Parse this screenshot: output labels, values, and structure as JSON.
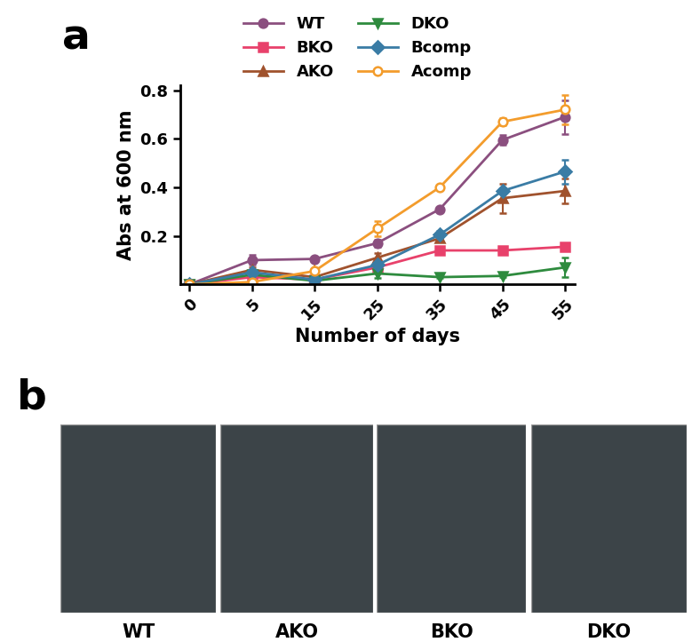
{
  "chart_data": {
    "type": "line",
    "panel_label": "a",
    "x_label": "Number of days",
    "y_label": "Abs at 600 nm",
    "categories": [
      "0",
      "5",
      "15",
      "25",
      "35",
      "45",
      "55"
    ],
    "ylim": [
      0,
      0.82
    ],
    "yticks": [
      0.2,
      0.4,
      0.6,
      0.8
    ],
    "legend": "upper center",
    "series": [
      {
        "name": "WT",
        "color": "#8b4f7f",
        "marker": "circle",
        "values": [
          0,
          0.1,
          0.105,
          0.17,
          0.31,
          0.595,
          0.69
        ],
        "errors": [
          0,
          0.02,
          0.005,
          0.015,
          0.005,
          0.02,
          0.07
        ]
      },
      {
        "name": "BKO",
        "color": "#e8416b",
        "marker": "square",
        "values": [
          0,
          0.03,
          0.02,
          0.07,
          0.14,
          0.14,
          0.155
        ],
        "errors": [
          0,
          0.01,
          0.005,
          0.01,
          0.005,
          0.005,
          0.015
        ]
      },
      {
        "name": "AKO",
        "color": "#a0522d",
        "marker": "triangle_up",
        "values": [
          0,
          0.06,
          0.03,
          0.11,
          0.19,
          0.355,
          0.385
        ],
        "errors": [
          0,
          0.01,
          0.01,
          0.02,
          0.01,
          0.06,
          0.05
        ]
      },
      {
        "name": "DKO",
        "color": "#2e8b3e",
        "marker": "triangle_down",
        "values": [
          0,
          0.04,
          0.015,
          0.045,
          0.03,
          0.035,
          0.07
        ],
        "errors": [
          0,
          0.02,
          0.005,
          0.02,
          0.005,
          0.005,
          0.04
        ]
      },
      {
        "name": "Bcomp",
        "color": "#3a7ca5",
        "marker": "diamond",
        "values": [
          0,
          0.05,
          0.02,
          0.08,
          0.205,
          0.385,
          0.465
        ],
        "errors": [
          0,
          0.01,
          0.005,
          0.01,
          0.015,
          0.01,
          0.05
        ]
      },
      {
        "name": "Acomp",
        "color": "#f39c2c",
        "marker": "open_circle",
        "values": [
          0,
          0.01,
          0.055,
          0.23,
          0.4,
          0.67,
          0.72
        ],
        "errors": [
          0,
          0.01,
          0.04,
          0.03,
          0.005,
          0.015,
          0.06
        ]
      }
    ]
  },
  "photos": {
    "panel_label": "b",
    "captions": [
      "WT",
      "AKO",
      "BKO",
      "DKO"
    ]
  }
}
